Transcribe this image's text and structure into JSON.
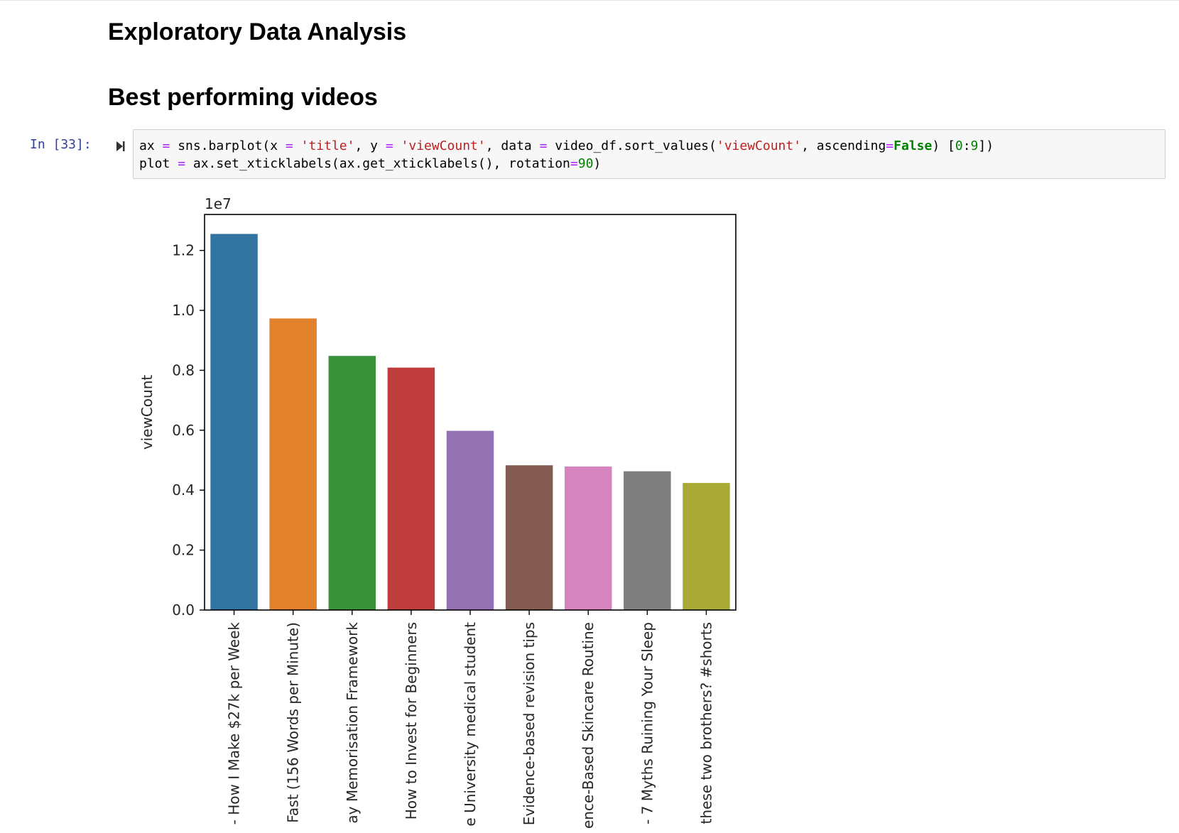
{
  "notebook": {
    "heading_eda": "Exploratory Data Analysis",
    "heading_best": "Best performing videos",
    "cell_prompt": "In [33]:",
    "run_icon": "run-cell-icon"
  },
  "code": {
    "line1": [
      {
        "t": "ax ",
        "c": ""
      },
      {
        "t": "=",
        "c": "op"
      },
      {
        "t": " sns.barplot(x ",
        "c": ""
      },
      {
        "t": "=",
        "c": "op"
      },
      {
        "t": " ",
        "c": ""
      },
      {
        "t": "'title'",
        "c": "str"
      },
      {
        "t": ", y ",
        "c": ""
      },
      {
        "t": "=",
        "c": "op"
      },
      {
        "t": " ",
        "c": ""
      },
      {
        "t": "'viewCount'",
        "c": "str"
      },
      {
        "t": ", data ",
        "c": ""
      },
      {
        "t": "=",
        "c": "op"
      },
      {
        "t": " video_df.sort_values(",
        "c": ""
      },
      {
        "t": "'viewCount'",
        "c": "str"
      },
      {
        "t": ", ascending",
        "c": ""
      },
      {
        "t": "=",
        "c": "op"
      },
      {
        "t": "False",
        "c": "kw"
      },
      {
        "t": ") [",
        "c": ""
      },
      {
        "t": "0",
        "c": "num"
      },
      {
        "t": ":",
        "c": ""
      },
      {
        "t": "9",
        "c": "num"
      },
      {
        "t": "])",
        "c": ""
      }
    ],
    "line2": [
      {
        "t": "plot ",
        "c": ""
      },
      {
        "t": "=",
        "c": "op"
      },
      {
        "t": " ax.set_xticklabels(ax.get_xticklabels(), rotation",
        "c": ""
      },
      {
        "t": "=",
        "c": "op"
      },
      {
        "t": "90",
        "c": "num"
      },
      {
        "t": ")",
        "c": ""
      }
    ]
  },
  "chart_data": {
    "type": "bar",
    "title": "",
    "xlabel": "",
    "ylabel": "viewCount",
    "offset_text": "1e7",
    "ylim": [
      0,
      1.32
    ],
    "yticks": [
      0.0,
      0.2,
      0.4,
      0.6,
      0.8,
      1.0,
      1.2
    ],
    "ytick_labels": [
      "0.0",
      "0.2",
      "0.4",
      "0.6",
      "0.8",
      "1.0",
      "1.2"
    ],
    "grid": false,
    "categories": [
      "- How I Make $27k per Week",
      "Fast (156 Words per Minute)",
      "ay Memorisation Framework",
      "How to Invest for Beginners",
      "e University medical student",
      "Evidence-based revision tips",
      "ence-Based Skincare Routine",
      "- 7 Myths Ruining Your Sleep",
      "these two brothers? #shorts"
    ],
    "values": [
      1.255,
      0.973,
      0.848,
      0.809,
      0.598,
      0.483,
      0.479,
      0.463,
      0.424
    ],
    "colors": [
      "#3274a1",
      "#e1812c",
      "#3a923a",
      "#c03d3e",
      "#9372b2",
      "#845b53",
      "#d684bd",
      "#7f7f7f",
      "#a9aa35"
    ]
  }
}
